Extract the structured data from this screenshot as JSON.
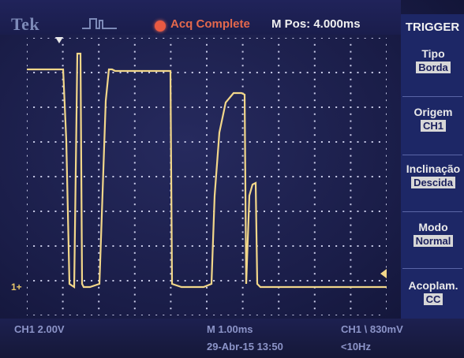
{
  "header": {
    "logo": "Tek",
    "mode_icon": "trigger-pulse-icon",
    "acq_status": "Acq Complete",
    "horizontal_position": "M Pos: 4.000ms"
  },
  "menu": {
    "title": "TRIGGER",
    "items": [
      {
        "label": "Tipo",
        "value": "Borda"
      },
      {
        "label": "Origem",
        "value": "CH1"
      },
      {
        "label": "Inclinação",
        "value": "Descida"
      },
      {
        "label": "Modo",
        "value": "Normal"
      },
      {
        "label": "Acoplam.",
        "value": "CC"
      }
    ]
  },
  "markers": {
    "ch1_ground": "1+"
  },
  "status": {
    "ch1_scale": "CH1  2.00V",
    "timebase": "M 1.00ms",
    "trigger_readout": "CH1 \\ 830mV",
    "date": "29-Abr-15 13:50",
    "trigger_freq": "<10Hz"
  },
  "colors": {
    "trace": "#f2d78a",
    "grid": "#c9cbe8",
    "menu_bg": "#1d2766",
    "acq_status": "#e4684c"
  }
}
